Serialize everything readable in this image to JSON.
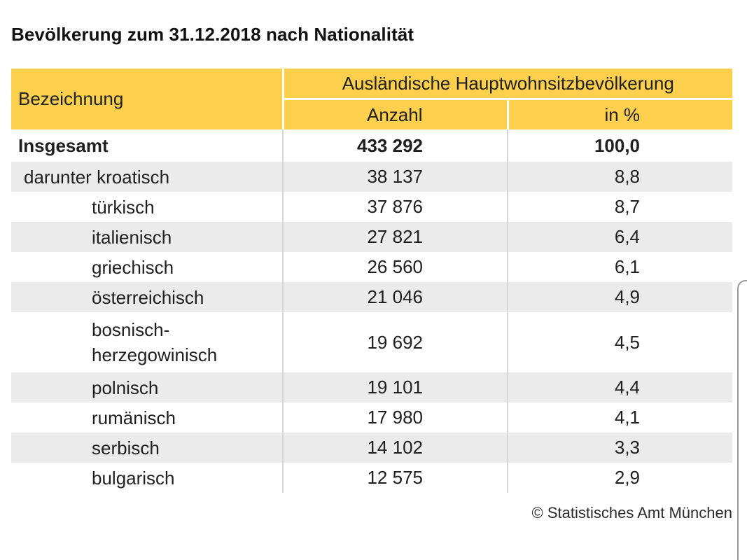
{
  "title": "Bevölkerung zum 31.12.2018 nach Nationalität",
  "table": {
    "header": {
      "bezeichnung": "Bezeichnung",
      "group": "Ausländische Hauptwohnsitzbevölkerung",
      "anzahl": "Anzahl",
      "prozent": "in %"
    },
    "rows": [
      {
        "label": "Insgesamt",
        "anzahl": "433 292",
        "prozent": "100,0"
      },
      {
        "label": "darunter kroatisch",
        "anzahl": "38 137",
        "prozent": "8,8"
      },
      {
        "label": "türkisch",
        "anzahl": "37 876",
        "prozent": "8,7"
      },
      {
        "label": "italienisch",
        "anzahl": "27 821",
        "prozent": "6,4"
      },
      {
        "label": "griechisch",
        "anzahl": "26 560",
        "prozent": "6,1"
      },
      {
        "label": "österreichisch",
        "anzahl": "21 046",
        "prozent": "4,9"
      },
      {
        "label": "bosnisch-",
        "label_line2": "herzegowinisch",
        "anzahl": "19 692",
        "prozent": "4,5"
      },
      {
        "label": "polnisch",
        "anzahl": "19 101",
        "prozent": "4,4"
      },
      {
        "label": "rumänisch",
        "anzahl": "17 980",
        "prozent": "4,1"
      },
      {
        "label": "serbisch",
        "anzahl": "14 102",
        "prozent": "3,3"
      },
      {
        "label": "bulgarisch",
        "anzahl": "12 575",
        "prozent": "2,9"
      }
    ]
  },
  "source": "© Statistisches Amt München",
  "colors": {
    "header_bg": "#fccf4d",
    "row_shade": "#ebebeb"
  }
}
